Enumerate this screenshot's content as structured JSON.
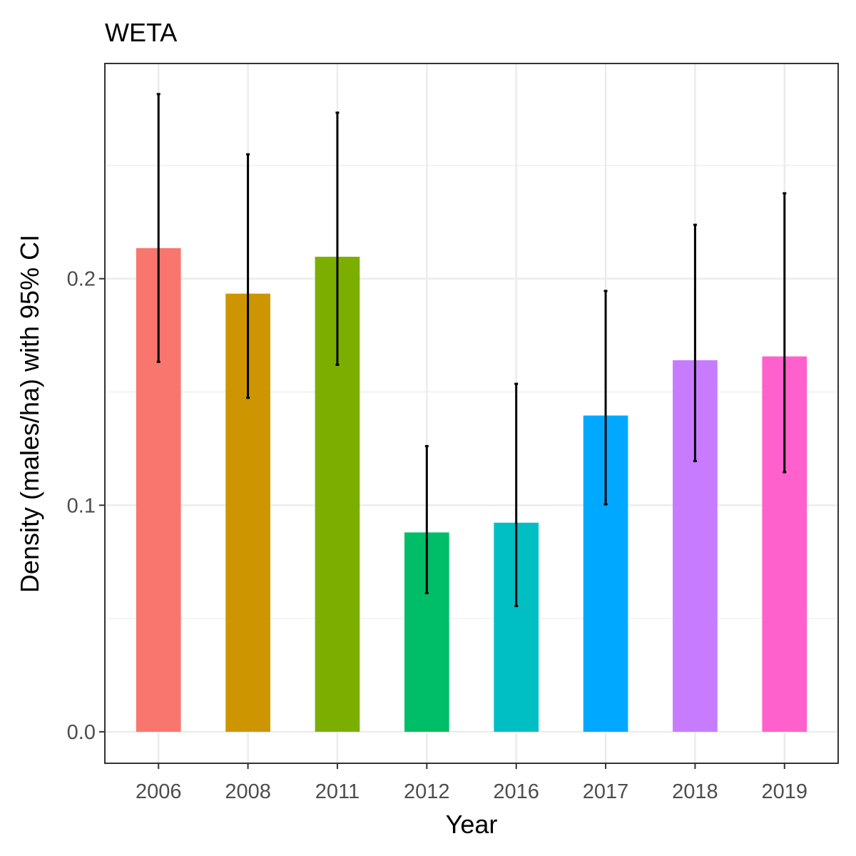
{
  "chart_data": {
    "type": "bar",
    "title": "WETA",
    "xlabel": "Year",
    "ylabel": "Density (males/ha) with 95% CI",
    "categories": [
      "2006",
      "2008",
      "2011",
      "2012",
      "2016",
      "2017",
      "2018",
      "2019"
    ],
    "values": [
      0.2135,
      0.1934,
      0.2097,
      0.088,
      0.0923,
      0.1396,
      0.164,
      0.1657
    ],
    "ci_lower": [
      0.1633,
      0.1474,
      0.162,
      0.0612,
      0.0555,
      0.1004,
      0.1195,
      0.1146
    ],
    "ci_upper": [
      0.2815,
      0.2549,
      0.2733,
      0.1261,
      0.1536,
      0.1946,
      0.2238,
      0.2377
    ],
    "colors": [
      "#F8766D",
      "#CD9600",
      "#7CAE00",
      "#00BE67",
      "#00BFC4",
      "#00A9FF",
      "#C77CFF",
      "#FF61CC"
    ],
    "error_bar_color": "#000000",
    "yticks": [
      "0.0",
      "0.1",
      "0.2"
    ],
    "ytick_values": [
      0,
      0.1,
      0.2
    ],
    "ylim": [
      -0.0139,
      0.295
    ],
    "grid": true,
    "legend": "none"
  }
}
